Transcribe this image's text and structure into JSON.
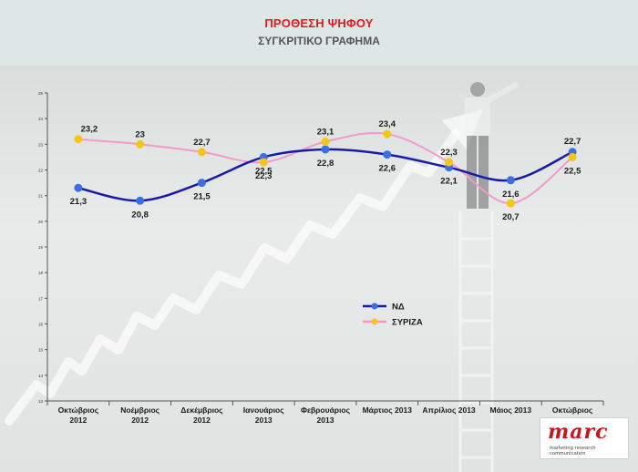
{
  "title": "ΠΡΟΘΕΣΗ ΨΗΦΟΥ",
  "subtitle": "ΣΥΓΚΡΙΤΙΚΟ ΓΡΑΦΗΜΑ",
  "logo": {
    "word": "marc",
    "tagline": "marketing research communication"
  },
  "colors": {
    "nd": "#1a1aa6",
    "syriza": "#f29ac8",
    "nd_marker": "#3b6fe0",
    "syriza_marker": "#f5c518",
    "title": "#e0191e"
  },
  "chart_data": {
    "type": "line",
    "categories": [
      [
        "Οκτώβριος",
        "2012"
      ],
      [
        "Νοέμβριος",
        "2012"
      ],
      [
        "Δεκέμβριος",
        "2012"
      ],
      [
        "Ιανουάριος",
        "2013"
      ],
      [
        "Φεβρουάριος",
        "2013"
      ],
      [
        "Μάρτιος 2013"
      ],
      [
        "Απρίλιος 2013"
      ],
      [
        "Μάιος 2013"
      ],
      [
        "Οκτώβριος",
        "2013"
      ]
    ],
    "series": [
      {
        "name": "ΝΔ",
        "values": [
          21.3,
          20.8,
          21.5,
          22.5,
          22.8,
          22.6,
          22.1,
          21.6,
          22.7
        ],
        "labels": [
          "21,3",
          "20,8",
          "21,5",
          "22,5",
          "22,8",
          "22,6",
          "22,1",
          "21,6",
          "22,7"
        ]
      },
      {
        "name": "ΣΥΡΙΖΑ",
        "values": [
          23.2,
          23,
          22.7,
          22.3,
          23.1,
          23.4,
          22.3,
          20.7,
          22.5
        ],
        "labels": [
          "23,2",
          "23",
          "22,7",
          "22,3",
          "23,1",
          "23,4",
          "22,3",
          "20,7",
          "22,5"
        ]
      }
    ],
    "yaxis": {
      "ticks": [
        25,
        24,
        23,
        22,
        21,
        20,
        19,
        18,
        17,
        16,
        15,
        14,
        13
      ],
      "range": [
        13,
        25
      ]
    },
    "legend": {
      "placement": "center-right"
    },
    "grid": false
  }
}
